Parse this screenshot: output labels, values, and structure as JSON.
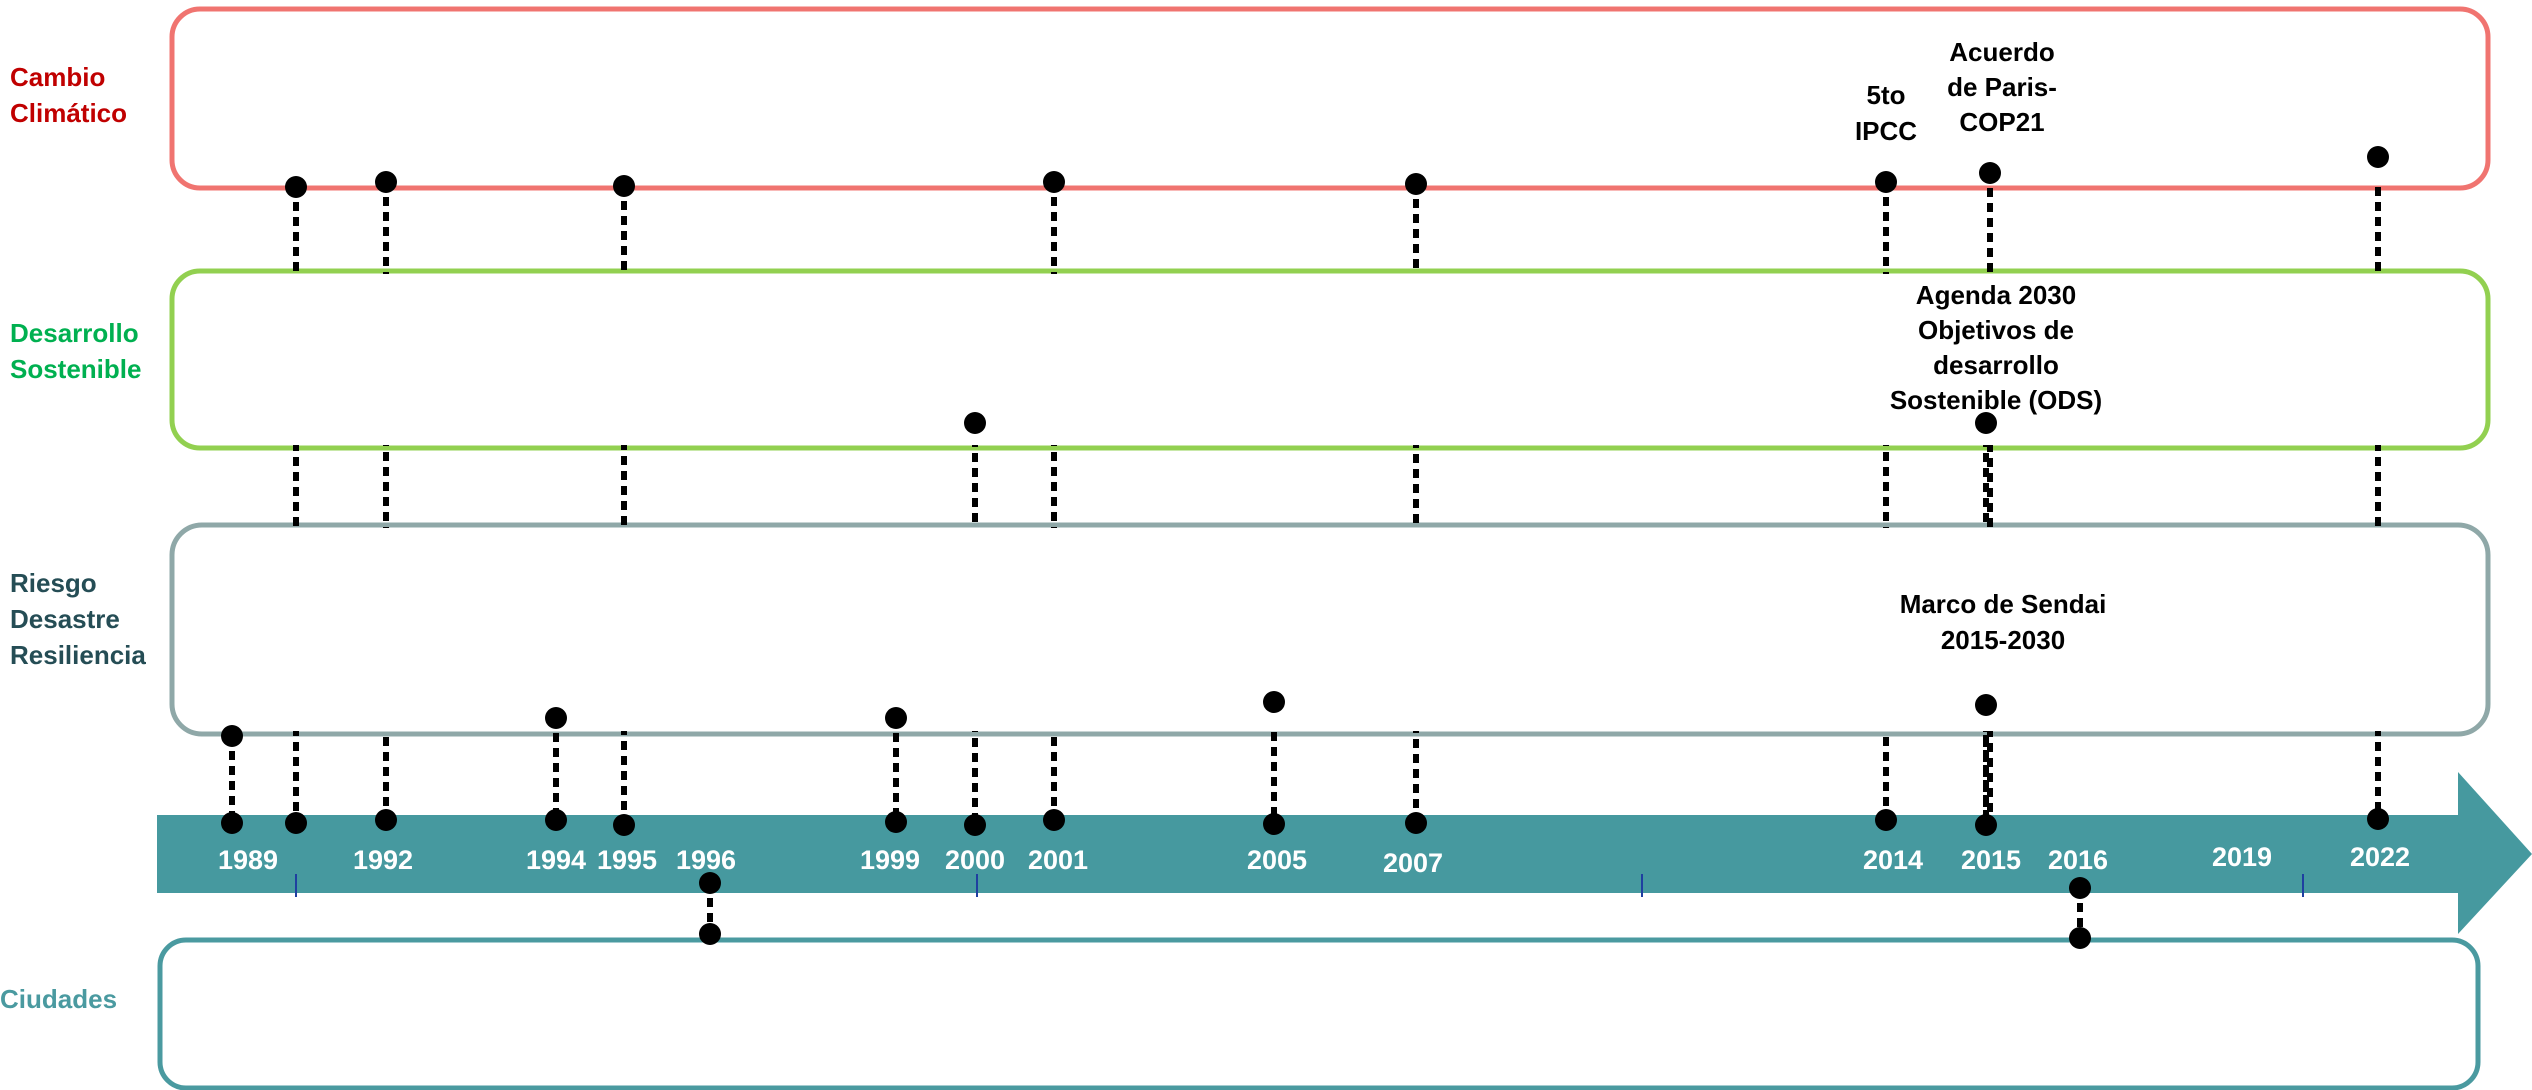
{
  "colors": {
    "cambio": "#f07470",
    "desarrollo": "#92d050",
    "riesgo": "#8fa8a8",
    "ciudades": "#4a9aa0",
    "arrow": "#46999f",
    "label_cambio": "#c00000",
    "label_desarrollo": "#00b050",
    "label_riesgo": "#254d55",
    "label_ciudades": "#4a9aa0",
    "dot": "#000000",
    "tick": "#1f3fa0",
    "year": "#ffffff"
  },
  "lanes": {
    "cambio": "Cambio\nClimático",
    "desarrollo": "Desarrollo\nSostenible",
    "riesgo": "Riesgo\nDesastre\nResiliencia",
    "ciudades": "Ciudades"
  },
  "years": [
    {
      "id": "1989",
      "label": "1989"
    },
    {
      "id": "1992",
      "label": "1992"
    },
    {
      "id": "1994",
      "label": "1994"
    },
    {
      "id": "1995",
      "label": "1995"
    },
    {
      "id": "1996",
      "label": "1996"
    },
    {
      "id": "1999",
      "label": "1999"
    },
    {
      "id": "2000",
      "label": "2000"
    },
    {
      "id": "2001",
      "label": "2001"
    },
    {
      "id": "2005",
      "label": "2005"
    },
    {
      "id": "2007",
      "label": "2007"
    },
    {
      "id": "2014",
      "label": "2014"
    },
    {
      "id": "2015",
      "label": "2015"
    },
    {
      "id": "2016",
      "label": "2016"
    },
    {
      "id": "2019",
      "label": "2019"
    },
    {
      "id": "2022",
      "label": "2022"
    }
  ],
  "annotations": {
    "ipcc5": "5to\nIPCC",
    "paris": "Acuerdo\nde Paris-\nCOP21",
    "agenda": "Agenda 2030\nObjetivos de\ndesarrollo\nSostenible (ODS)",
    "sendai": "Marco de Sendai\n2015-2030"
  }
}
